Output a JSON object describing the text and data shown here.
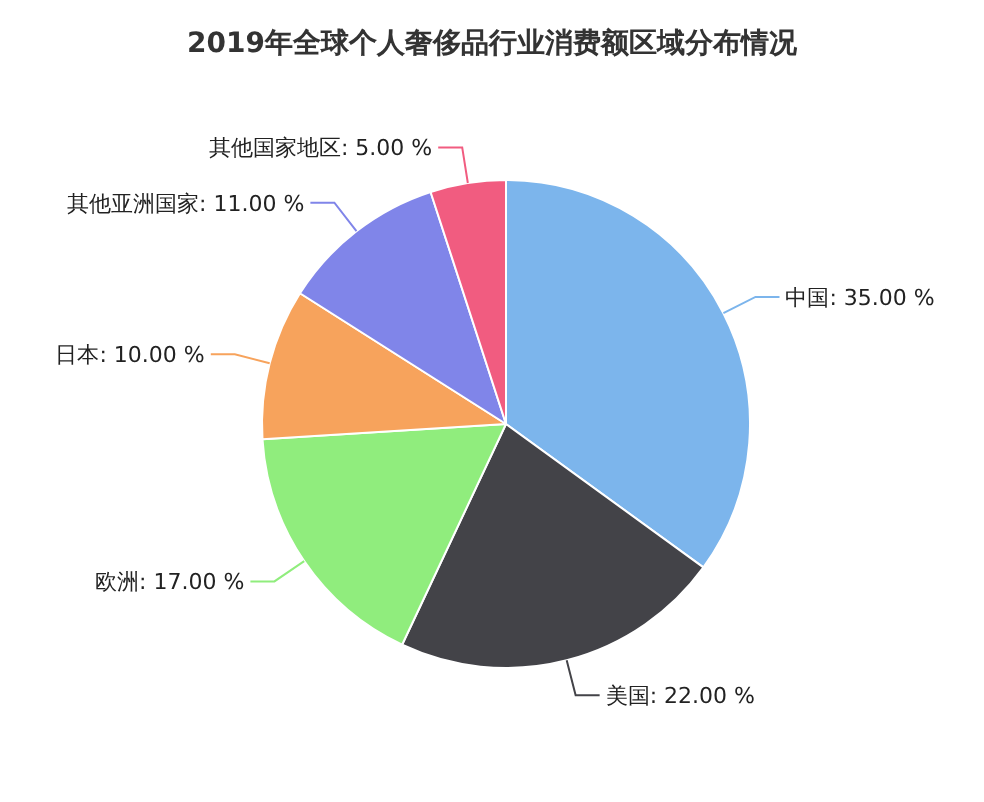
{
  "chart_data": {
    "type": "pie",
    "title": "2019年全球个人奢侈品行业消费额区域分布情况",
    "categories": [
      "中国",
      "美国",
      "欧洲",
      "日本",
      "其他亚洲国家",
      "其他国家地区"
    ],
    "values": [
      35,
      22,
      17,
      10,
      11,
      5
    ],
    "value_labels": [
      "35.00 %",
      "22.00 %",
      "17.00 %",
      "10.00 %",
      "11.00 %",
      "5.00 %"
    ],
    "colors": [
      "#7cb5ec",
      "#434348",
      "#90ed7d",
      "#f7a35c",
      "#8085e9",
      "#f15c80"
    ]
  }
}
